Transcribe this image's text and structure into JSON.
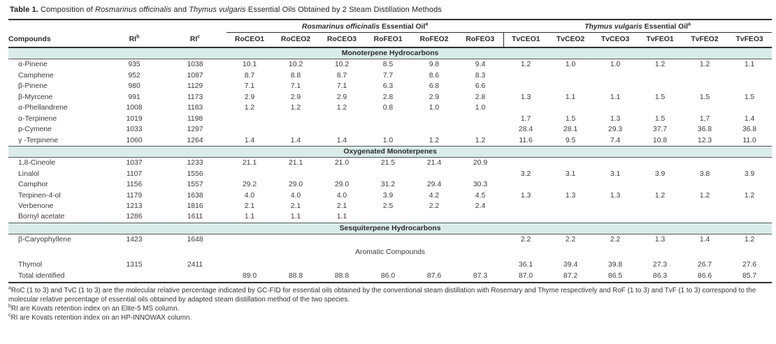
{
  "colors": {
    "band": "#d9ece9",
    "rule": "#2e2e32"
  },
  "title": {
    "parts": [
      {
        "text": "Table 1.",
        "style": "bold"
      },
      {
        "text": " Composition of ",
        "style": ""
      },
      {
        "text": "Rosmarinus officinalis",
        "style": "italic"
      },
      {
        "text": " and ",
        "style": ""
      },
      {
        "text": "Thymus vulgaris",
        "style": "italic"
      },
      {
        "text": " Essential Oils Obtained by 2 Steam Distillation Methods",
        "style": ""
      }
    ]
  },
  "table": {
    "group_headers": [
      {
        "italic": "Rosmarinus officinalis",
        "rest": " Essential Oil",
        "sup": "a"
      },
      {
        "italic": "Thymus vulgaris",
        "rest": " Essential Oil",
        "sup": "a"
      }
    ],
    "columns": [
      {
        "label": "Compounds",
        "sup": ""
      },
      {
        "label": "RI",
        "sup": "b"
      },
      {
        "label": "RI",
        "sup": "c"
      },
      {
        "label": "RoCEO1",
        "sup": ""
      },
      {
        "label": "RoCEO2",
        "sup": ""
      },
      {
        "label": "RoCEO3",
        "sup": ""
      },
      {
        "label": "RoFEO1",
        "sup": ""
      },
      {
        "label": "RoFEO2",
        "sup": ""
      },
      {
        "label": "RoFEO3",
        "sup": ""
      },
      {
        "label": "TvCEO1",
        "sup": ""
      },
      {
        "label": "TvCEO2",
        "sup": ""
      },
      {
        "label": "TvCEO3",
        "sup": ""
      },
      {
        "label": "TvFEO1",
        "sup": ""
      },
      {
        "label": "TvFEO2",
        "sup": ""
      },
      {
        "label": "TvFEO3",
        "sup": ""
      }
    ],
    "sections": [
      {
        "header": "Monoterpene Hydrocarbons",
        "style": "band",
        "rows": [
          {
            "compound": "α-Pinene",
            "values": [
              "935",
              "1038",
              "10.1",
              "10.2",
              "10.2",
              "8.5",
              "9.8",
              "9.4",
              "1.2",
              "1.0",
              "1.0",
              "1.2",
              "1.2",
              "1.1"
            ]
          },
          {
            "compound": "Camphene",
            "values": [
              "952",
              "1087",
              "8.7",
              "8.8",
              "8.7",
              "7.7",
              "8.6",
              "8.3",
              "",
              "",
              "",
              "",
              "",
              ""
            ]
          },
          {
            "compound": "β-Pinene",
            "values": [
              "980",
              "1129",
              "7.1",
              "7.1",
              "7.1",
              "6.3",
              "6.8",
              "6.6",
              "",
              "",
              "",
              "",
              "",
              ""
            ]
          },
          {
            "compound": "β-Myrcene",
            "values": [
              "991",
              "1173",
              "2.9",
              "2.9",
              "2.9",
              "2.8",
              "2.9",
              "2.8",
              "1.3",
              "1.1",
              "1.1",
              "1.5",
              "1.5",
              "1.5"
            ]
          },
          {
            "compound": "α-Phellandrene",
            "values": [
              "1008",
              "1183",
              "1.2",
              "1.2",
              "1.2",
              "0.8",
              "1.0",
              "1.0",
              "",
              "",
              "",
              "",
              "",
              ""
            ]
          },
          {
            "compound": "α-Terpinene",
            "values": [
              "1019",
              "1198",
              "",
              "",
              "",
              "",
              "",
              "",
              "1.7",
              "1.5",
              "1.3",
              "1.5",
              "1,7",
              "1.4"
            ]
          },
          {
            "compound": "p-Cymene",
            "values": [
              "1033",
              "1297",
              "",
              "",
              "",
              "",
              "",
              "",
              "28.4",
              "28.1",
              "29.3",
              "37.7",
              "36.8",
              "36.8"
            ]
          },
          {
            "compound": "γ -Terpinene",
            "values": [
              "1060",
              "1264",
              "1.4",
              "1.4",
              "1.4",
              "1.0",
              "1.2",
              "1.2",
              "11.6",
              "9.5",
              "7.4",
              "10.8",
              "12.3",
              "11.0"
            ]
          }
        ]
      },
      {
        "header": "Oxygenated Monoterpenes",
        "style": "band",
        "rows": [
          {
            "compound": "1,8-Cineole",
            "values": [
              "1037",
              "1233",
              "21.1",
              "21.1",
              "21.0",
              "21.5",
              "21.4",
              "20.9",
              "",
              "",
              "",
              "",
              "",
              ""
            ]
          },
          {
            "compound": "Linalol",
            "values": [
              "1107",
              "1556",
              "",
              "",
              "",
              "",
              "",
              "",
              "3.2",
              "3.1",
              "3.1",
              "3.9",
              "3.8",
              "3.9"
            ]
          },
          {
            "compound": "Camphor",
            "values": [
              "1156",
              "1557",
              "29.2",
              "29.0",
              "29.0",
              "31.2",
              "29.4",
              "30.3",
              "",
              "",
              "",
              "",
              "",
              ""
            ]
          },
          {
            "compound": "Terpinen-4-ol",
            "values": [
              "1179",
              "1638",
              "4.0",
              "4.0",
              "4.0",
              "3.9",
              "4.2",
              "4.5",
              "1.3",
              "1.3",
              "1.3",
              "1.2",
              "1.2",
              "1.2"
            ]
          },
          {
            "compound": "Verbenone",
            "values": [
              "1213",
              "1816",
              "2.1",
              "2.1",
              "2.1",
              "2.5",
              "2.2",
              "2.4",
              "",
              "",
              "",
              "",
              "",
              ""
            ]
          },
          {
            "compound": "Bornyl acetate",
            "values": [
              "1286",
              "1611",
              "1.1",
              "1.1",
              "1.1",
              "",
              "",
              "",
              "",
              "",
              "",
              "",
              "",
              ""
            ]
          }
        ]
      },
      {
        "header": "Sesquiterpene Hydrocarbons",
        "style": "band",
        "rows": [
          {
            "compound": "β-Caryophyllene",
            "values": [
              "1423",
              "1648",
              "",
              "",
              "",
              "",
              "",
              "",
              "2.2",
              "2.2",
              "2.2",
              "1.3",
              "1.4",
              "1.2"
            ]
          }
        ]
      },
      {
        "header": "Aromatic Compounds",
        "style": "plain",
        "rows": [
          {
            "compound": "Thymol",
            "values": [
              "1315",
              "2411",
              "",
              "",
              "",
              "",
              "",
              "",
              "36.1",
              "39.4",
              "39.8",
              "27.3",
              "26.7",
              "27.6"
            ]
          }
        ]
      }
    ],
    "total_row": {
      "label": "Total identified",
      "values": [
        "",
        "",
        "89.0",
        "88.8",
        "88.8",
        "86.0",
        "87.6",
        "87.3",
        "87.0",
        "87.2",
        "86.5",
        "86.3",
        "86.6",
        "85.7"
      ]
    }
  },
  "footnotes": [
    {
      "sup": "a",
      "text": "RoC (1 to 3) and TvC (1 to 3) are the molecular relative percentage indicated by GC-FID for essential oils obtained by the conventional steam distillation with Rosemary and Thyme respectively and RoF (1 to 3) and TvF (1 to 3) correspond to the molecular relative percentage of essential oils obtained by adapted steam distillation method of the two species."
    },
    {
      "sup": "b",
      "text": "RI are Kovats retention index on an Elite-5 MS column."
    },
    {
      "sup": "c",
      "text": "RI are Kovats retention index on an HP-INNOWAX column."
    }
  ]
}
